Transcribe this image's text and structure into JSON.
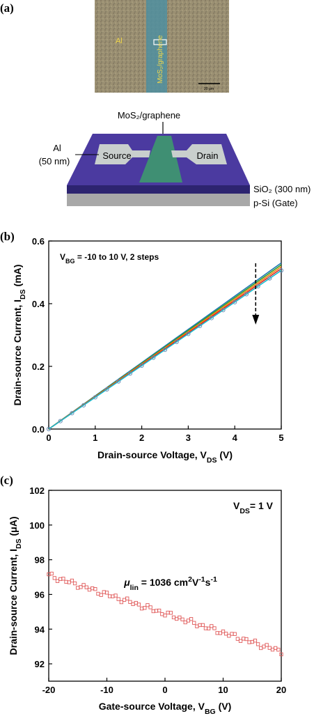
{
  "panels": {
    "a": "(a)",
    "b": "(b)",
    "c": "(c)"
  },
  "micrograph": {
    "al_label": "Al",
    "channel_label": "MoS₂/graphene",
    "scalebar_label": "20 μm"
  },
  "schematic": {
    "top_label": "MoS₂/graphene",
    "al_label_line1": "Al",
    "al_label_line2": "(50 nm)",
    "source_label": "Source",
    "drain_label": "Drain",
    "sio2_label": "SiO₂ (300 nm)",
    "si_label": "p-Si (Gate)",
    "colors": {
      "substrate_top": "#4b3aa0",
      "substrate_side": "#2d2470",
      "si": "#a8a8a8",
      "electrode": "#c9cfcd",
      "channel": "#3f8f73"
    }
  },
  "chart_data": [
    {
      "type": "line",
      "annotation": "V_BG = -10 to 10 V, 2 steps",
      "arrow": "downward arrow indicating increasing V_BG",
      "xlabel": "Drain-source Voltage, V_DS (V)",
      "ylabel": "Drain-source Current, I_DS (mA)",
      "xlim": [
        0,
        5
      ],
      "ylim": [
        0,
        0.6
      ],
      "xticks": [
        "0",
        "1",
        "2",
        "3",
        "4",
        "5"
      ],
      "yticks": [
        "0.0",
        "0.2",
        "0.4",
        "0.6"
      ],
      "x": [
        0.0,
        0.25,
        0.5,
        0.75,
        1.0,
        1.25,
        1.5,
        1.75,
        2.0,
        2.25,
        2.5,
        2.75,
        3.0,
        3.25,
        3.5,
        3.75,
        4.0,
        4.25,
        4.5,
        4.75,
        5.0
      ],
      "series": [
        {
          "color": "#1f77b4",
          "values": [
            0,
            0.0265,
            0.053,
            0.0795,
            0.106,
            0.1325,
            0.159,
            0.1855,
            0.212,
            0.2385,
            0.265,
            0.2915,
            0.318,
            0.3445,
            0.371,
            0.3975,
            0.424,
            0.4505,
            0.477,
            0.5035,
            0.53
          ]
        },
        {
          "color": "#2ca02c",
          "values": [
            0,
            0.0262,
            0.0524,
            0.0786,
            0.1048,
            0.131,
            0.1572,
            0.1834,
            0.2096,
            0.2358,
            0.262,
            0.2882,
            0.3144,
            0.3406,
            0.3668,
            0.393,
            0.4192,
            0.4454,
            0.4716,
            0.4978,
            0.524
          ]
        },
        {
          "color": "#ff7f0e",
          "values": [
            0,
            0.0259,
            0.0518,
            0.0777,
            0.1036,
            0.1295,
            0.1554,
            0.1813,
            0.2072,
            0.2331,
            0.259,
            0.2849,
            0.3108,
            0.3367,
            0.3626,
            0.3885,
            0.4144,
            0.4403,
            0.4662,
            0.4921,
            0.518
          ]
        },
        {
          "color": "#d62728",
          "values": [
            0,
            0.0256,
            0.0512,
            0.0768,
            0.1024,
            0.128,
            0.1536,
            0.1792,
            0.2048,
            0.2304,
            0.256,
            0.2816,
            0.3072,
            0.3328,
            0.3584,
            0.384,
            0.4096,
            0.4352,
            0.4608,
            0.4864,
            0.512
          ]
        },
        {
          "color": "#17becf",
          "values": [
            0,
            0.0253,
            0.0506,
            0.0759,
            0.1012,
            0.1265,
            0.1518,
            0.1771,
            0.2024,
            0.2277,
            0.253,
            0.2783,
            0.3036,
            0.3289,
            0.3542,
            0.3795,
            0.4048,
            0.4301,
            0.4554,
            0.4807,
            0.506
          ]
        }
      ],
      "grid": false
    },
    {
      "type": "scatter",
      "annotation_vds": "V_DS = 1 V",
      "annotation_mu": "μ_lin = 1036 cm²V⁻¹s⁻¹",
      "xlabel": "Gate-source Voltage, V_BG (V)",
      "ylabel": "Drain-source Current, I_DS (μA)",
      "xlim": [
        -20,
        20
      ],
      "ylim": [
        91,
        102
      ],
      "xticks": [
        "-20",
        "-10",
        "0",
        "10",
        "20"
      ],
      "yticks": [
        "92",
        "94",
        "96",
        "98",
        "100",
        "102"
      ],
      "marker_color": "#e05a5a",
      "x_start": -20,
      "x_end": 20,
      "x_step": 0.5,
      "y_fit": {
        "start": 97.1,
        "end": 92.7
      },
      "grid": false
    }
  ]
}
